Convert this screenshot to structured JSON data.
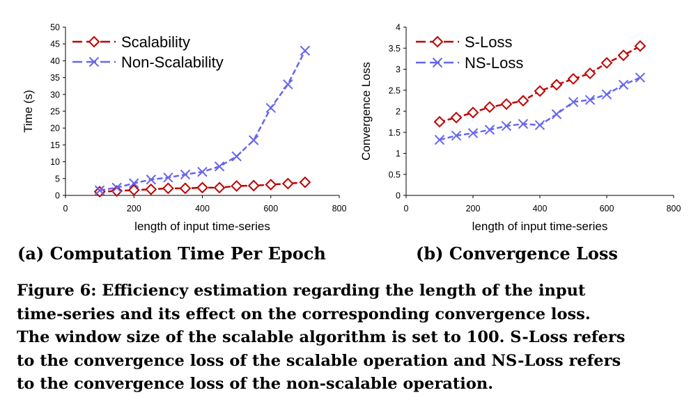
{
  "chart_data": [
    {
      "type": "line",
      "xlabel": "length of input time-series",
      "ylabel": "Time (s)",
      "xlim": [
        0,
        800
      ],
      "ylim": [
        0,
        50
      ],
      "xticks": [
        0,
        200,
        400,
        600,
        800
      ],
      "yticks": [
        0,
        5,
        10,
        15,
        20,
        25,
        30,
        35,
        40,
        45,
        50
      ],
      "grid": false,
      "legend_position": "top-left",
      "series": [
        {
          "name": "Scalability",
          "color": "#C00000",
          "marker": "diamond",
          "x": [
            100,
            150,
            200,
            250,
            300,
            350,
            400,
            450,
            500,
            550,
            600,
            650,
            700
          ],
          "values": [
            1.1,
            1.3,
            1.6,
            1.8,
            2.1,
            2.1,
            2.3,
            2.3,
            2.8,
            2.9,
            3.2,
            3.5,
            3.9
          ]
        },
        {
          "name": "Non-Scalability",
          "color": "#6666EE",
          "marker": "x",
          "x": [
            100,
            150,
            200,
            250,
            300,
            350,
            400,
            450,
            500,
            550,
            600,
            650,
            700
          ],
          "values": [
            1.5,
            2.3,
            3.6,
            4.7,
            5.3,
            6.2,
            7.0,
            8.6,
            11.6,
            16.4,
            26.0,
            33.0,
            43.0
          ]
        }
      ]
    },
    {
      "type": "line",
      "xlabel": "length of input time-series",
      "ylabel": "Convergence Loss",
      "xlim": [
        0,
        800
      ],
      "ylim": [
        0,
        4
      ],
      "xticks": [
        0,
        200,
        400,
        600,
        800
      ],
      "yticks": [
        0,
        0.5,
        1,
        1.5,
        2,
        2.5,
        3,
        3.5,
        4
      ],
      "grid": false,
      "legend_position": "top-left",
      "series": [
        {
          "name": "S-Loss",
          "color": "#C00000",
          "marker": "diamond",
          "x": [
            100,
            150,
            200,
            250,
            300,
            350,
            400,
            450,
            500,
            550,
            600,
            650,
            700
          ],
          "values": [
            1.75,
            1.85,
            1.97,
            2.1,
            2.17,
            2.25,
            2.48,
            2.63,
            2.77,
            2.9,
            3.15,
            3.33,
            3.55
          ]
        },
        {
          "name": "NS-Loss",
          "color": "#6666EE",
          "marker": "x",
          "x": [
            100,
            150,
            200,
            250,
            300,
            350,
            400,
            450,
            500,
            550,
            600,
            650,
            700
          ],
          "values": [
            1.32,
            1.42,
            1.48,
            1.56,
            1.65,
            1.7,
            1.67,
            1.93,
            2.22,
            2.27,
            2.4,
            2.63,
            2.8
          ]
        }
      ]
    }
  ],
  "captions": {
    "sub_a": "(a) Computation Time Per Epoch",
    "sub_b": "(b) Convergence Loss",
    "main_lines": [
      "Figure 6: Efficiency estimation regarding the length of the input",
      "time-series and its effect on the corresponding convergence loss.",
      "The window size of the scalable algorithm is set to 100. S-Loss refers",
      "to the convergence loss of the scalable operation and NS-Loss refers",
      "to the convergence loss of the non-scalable operation."
    ]
  }
}
